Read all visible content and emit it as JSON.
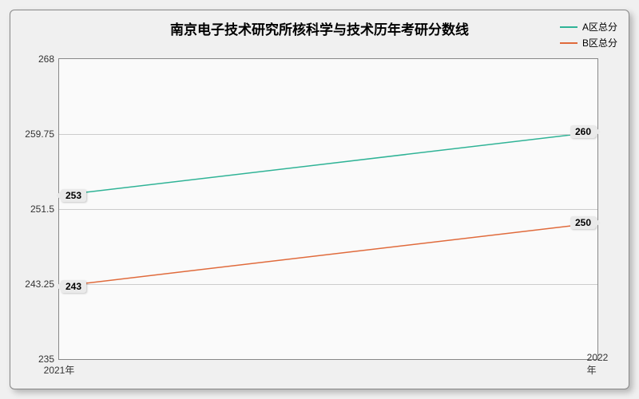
{
  "chart": {
    "type": "line",
    "title": "南京电子技术研究所核科学与技术历年考研分数线",
    "title_fontsize": 17,
    "background_color": "#f0f0f0",
    "plot_background": "#fafafa",
    "border_color": "#888888",
    "grid_color": "#cccccc",
    "x": {
      "ticks": [
        "2021年",
        "2022年"
      ]
    },
    "y": {
      "min": 235,
      "max": 268,
      "ticks": [
        235,
        243.25,
        251.5,
        259.75,
        268
      ]
    },
    "series": [
      {
        "name": "A区总分",
        "color": "#2fb396",
        "values": [
          253,
          260
        ],
        "labels": [
          "253",
          "260"
        ],
        "line_width": 1.5
      },
      {
        "name": "B区总分",
        "color": "#e06a3b",
        "values": [
          243,
          250
        ],
        "labels": [
          "243",
          "250"
        ],
        "line_width": 1.5
      }
    ],
    "legend": {
      "position": "top-right",
      "fontsize": 12
    },
    "label_fontsize": 12
  }
}
